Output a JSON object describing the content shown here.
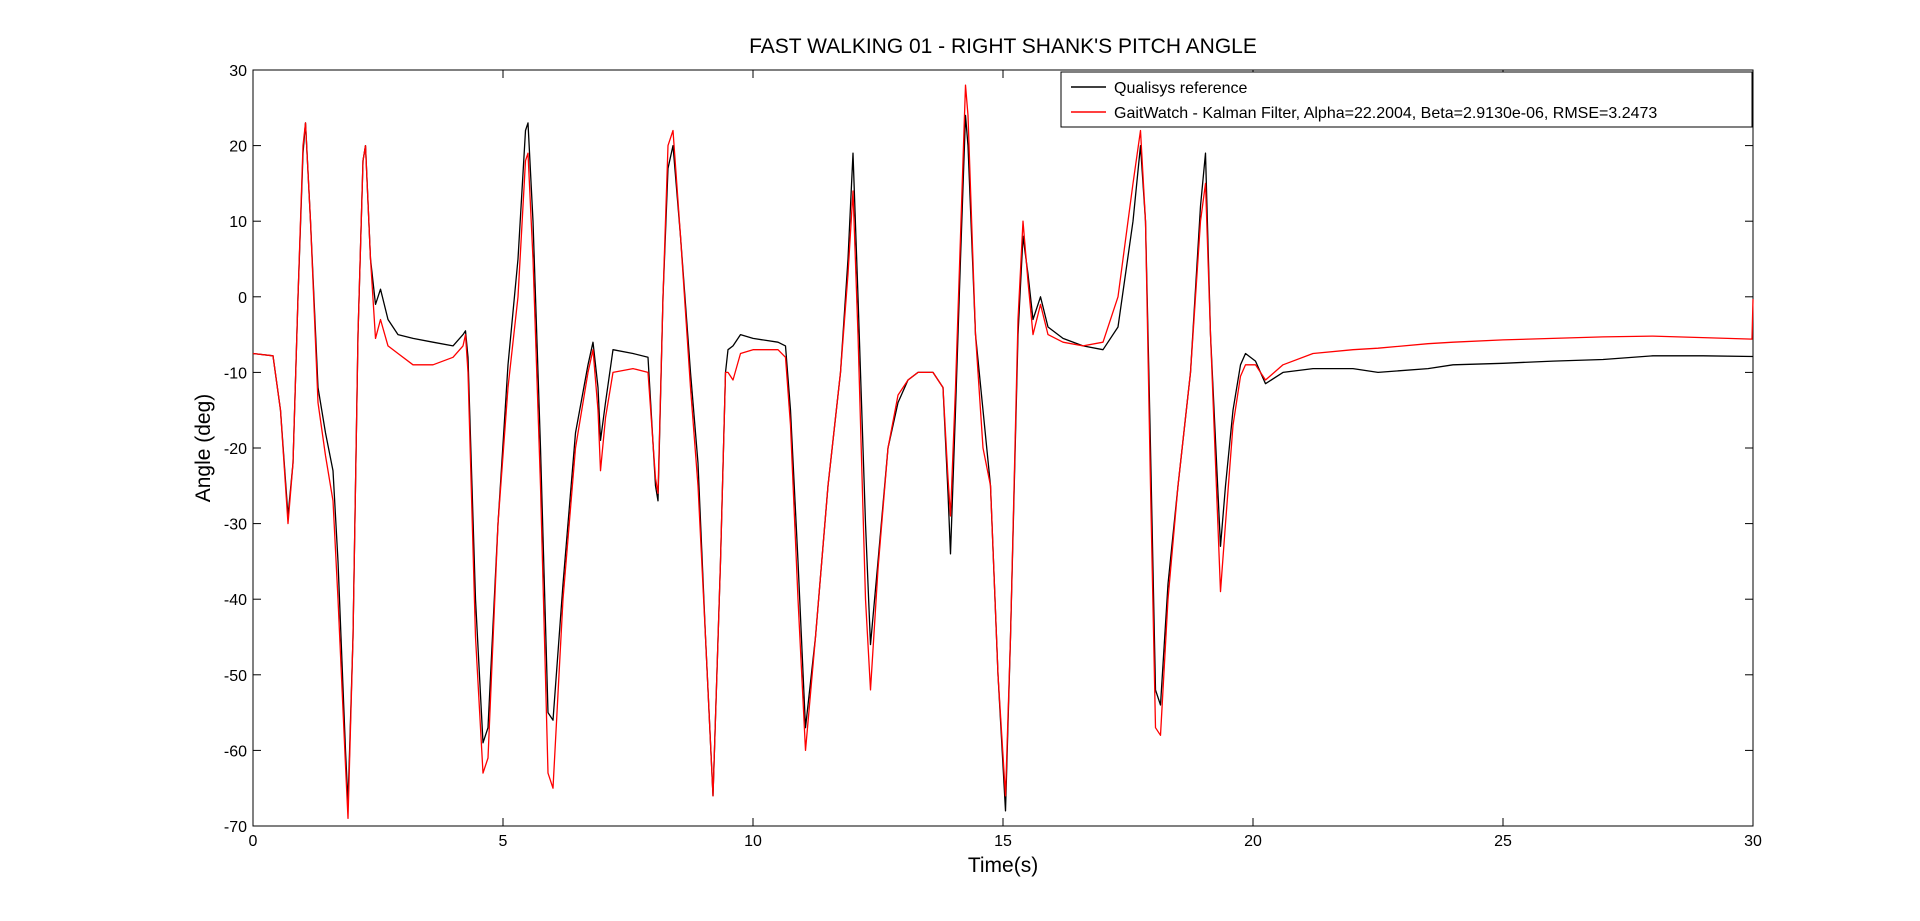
{
  "chart_data": {
    "type": "line",
    "title": "FAST WALKING 01 - RIGHT SHANK'S PITCH ANGLE",
    "xlabel": "Time(s)",
    "ylabel": "Angle (deg)",
    "xlim": [
      0,
      30
    ],
    "ylim": [
      -70,
      30
    ],
    "xticks": [
      0,
      5,
      10,
      15,
      20,
      25,
      30
    ],
    "yticks": [
      -70,
      -60,
      -50,
      -40,
      -30,
      -20,
      -10,
      0,
      10,
      20,
      30
    ],
    "grid": false,
    "legend_position": "top-right",
    "colors": {
      "reference": "#000000",
      "filter": "#ff0000"
    },
    "series": [
      {
        "name": "Qualisys reference",
        "color": "#000000",
        "points": [
          [
            0,
            -7.5
          ],
          [
            0.4,
            -7.8
          ],
          [
            0.55,
            -15
          ],
          [
            0.7,
            -29
          ],
          [
            0.8,
            -22
          ],
          [
            0.9,
            0
          ],
          [
            1.0,
            19
          ],
          [
            1.05,
            23
          ],
          [
            1.15,
            10
          ],
          [
            1.3,
            -12
          ],
          [
            1.45,
            -18
          ],
          [
            1.6,
            -23
          ],
          [
            1.7,
            -35
          ],
          [
            1.85,
            -60
          ],
          [
            1.9,
            -67
          ],
          [
            2.0,
            -45
          ],
          [
            2.1,
            -5
          ],
          [
            2.2,
            18
          ],
          [
            2.25,
            20
          ],
          [
            2.35,
            5
          ],
          [
            2.45,
            -1
          ],
          [
            2.55,
            1
          ],
          [
            2.7,
            -3
          ],
          [
            2.9,
            -5
          ],
          [
            3.2,
            -5.5
          ],
          [
            3.6,
            -6
          ],
          [
            4.0,
            -6.5
          ],
          [
            4.2,
            -5
          ],
          [
            4.25,
            -4.5
          ],
          [
            4.3,
            -8
          ],
          [
            4.45,
            -40
          ],
          [
            4.6,
            -59
          ],
          [
            4.7,
            -57
          ],
          [
            4.9,
            -30
          ],
          [
            5.1,
            -9
          ],
          [
            5.3,
            5
          ],
          [
            5.45,
            22
          ],
          [
            5.5,
            23
          ],
          [
            5.6,
            10
          ],
          [
            5.75,
            -20
          ],
          [
            5.9,
            -55
          ],
          [
            6.0,
            -56
          ],
          [
            6.2,
            -38
          ],
          [
            6.45,
            -18
          ],
          [
            6.7,
            -9
          ],
          [
            6.8,
            -6
          ],
          [
            6.9,
            -12
          ],
          [
            6.95,
            -19
          ],
          [
            7.05,
            -14
          ],
          [
            7.2,
            -7
          ],
          [
            7.6,
            -7.5
          ],
          [
            7.9,
            -8
          ],
          [
            8.05,
            -25
          ],
          [
            8.1,
            -27
          ],
          [
            8.2,
            0
          ],
          [
            8.3,
            17
          ],
          [
            8.4,
            20
          ],
          [
            8.55,
            8
          ],
          [
            8.75,
            -10
          ],
          [
            8.9,
            -22
          ],
          [
            9.05,
            -45
          ],
          [
            9.2,
            -66
          ],
          [
            9.35,
            -35
          ],
          [
            9.45,
            -10
          ],
          [
            9.5,
            -7
          ],
          [
            9.6,
            -6.5
          ],
          [
            9.75,
            -5
          ],
          [
            10.0,
            -5.5
          ],
          [
            10.5,
            -6
          ],
          [
            10.65,
            -6.5
          ],
          [
            10.75,
            -15
          ],
          [
            10.9,
            -35
          ],
          [
            11.05,
            -57
          ],
          [
            11.25,
            -45
          ],
          [
            11.5,
            -25
          ],
          [
            11.75,
            -10
          ],
          [
            11.9,
            5
          ],
          [
            12.0,
            19
          ],
          [
            12.1,
            0
          ],
          [
            12.25,
            -30
          ],
          [
            12.35,
            -46
          ],
          [
            12.5,
            -35
          ],
          [
            12.7,
            -20
          ],
          [
            12.9,
            -14
          ],
          [
            13.1,
            -11
          ],
          [
            13.3,
            -10
          ],
          [
            13.6,
            -10
          ],
          [
            13.8,
            -12
          ],
          [
            13.9,
            -26
          ],
          [
            13.95,
            -34
          ],
          [
            14.05,
            -15
          ],
          [
            14.15,
            5
          ],
          [
            14.25,
            24
          ],
          [
            14.3,
            20
          ],
          [
            14.45,
            -5
          ],
          [
            14.6,
            -15
          ],
          [
            14.75,
            -25
          ],
          [
            14.9,
            -50
          ],
          [
            15.05,
            -68
          ],
          [
            15.15,
            -45
          ],
          [
            15.3,
            -5
          ],
          [
            15.4,
            8
          ],
          [
            15.5,
            3
          ],
          [
            15.6,
            -3
          ],
          [
            15.75,
            0
          ],
          [
            15.9,
            -4
          ],
          [
            16.2,
            -5.5
          ],
          [
            16.6,
            -6.5
          ],
          [
            17.0,
            -7
          ],
          [
            17.3,
            -4
          ],
          [
            17.6,
            10
          ],
          [
            17.75,
            20
          ],
          [
            17.85,
            10
          ],
          [
            17.95,
            -20
          ],
          [
            18.05,
            -52
          ],
          [
            18.15,
            -54
          ],
          [
            18.3,
            -38
          ],
          [
            18.5,
            -25
          ],
          [
            18.75,
            -10
          ],
          [
            18.95,
            12
          ],
          [
            19.05,
            19
          ],
          [
            19.15,
            -5
          ],
          [
            19.35,
            -33
          ],
          [
            19.45,
            -25
          ],
          [
            19.6,
            -15
          ],
          [
            19.75,
            -9
          ],
          [
            19.85,
            -7.5
          ],
          [
            20.05,
            -8.5
          ],
          [
            20.25,
            -11.5
          ],
          [
            20.6,
            -10
          ],
          [
            21.2,
            -9.5
          ],
          [
            22.0,
            -9.5
          ],
          [
            22.5,
            -10
          ],
          [
            23.5,
            -9.5
          ],
          [
            24.0,
            -9
          ],
          [
            25.0,
            -8.8
          ],
          [
            26.0,
            -8.5
          ],
          [
            27.0,
            -8.3
          ],
          [
            28.0,
            -7.8
          ],
          [
            29.0,
            -7.8
          ],
          [
            30.0,
            -7.9
          ]
        ]
      },
      {
        "name": "GaitWatch - Kalman Filter, Alpha=22.2004, Beta=2.9130e-06, RMSE=3.2473",
        "color": "#ff0000",
        "points": [
          [
            0,
            -7.5
          ],
          [
            0.4,
            -7.8
          ],
          [
            0.55,
            -15
          ],
          [
            0.7,
            -30
          ],
          [
            0.8,
            -22
          ],
          [
            0.9,
            0
          ],
          [
            1.0,
            20
          ],
          [
            1.05,
            23
          ],
          [
            1.15,
            10
          ],
          [
            1.3,
            -14
          ],
          [
            1.45,
            -21
          ],
          [
            1.6,
            -27
          ],
          [
            1.7,
            -40
          ],
          [
            1.85,
            -62
          ],
          [
            1.9,
            -69
          ],
          [
            2.0,
            -45
          ],
          [
            2.1,
            -5
          ],
          [
            2.2,
            18
          ],
          [
            2.25,
            20
          ],
          [
            2.35,
            5
          ],
          [
            2.45,
            -5.5
          ],
          [
            2.55,
            -3
          ],
          [
            2.7,
            -6.5
          ],
          [
            2.9,
            -7.5
          ],
          [
            3.2,
            -9
          ],
          [
            3.6,
            -9
          ],
          [
            4.0,
            -8
          ],
          [
            4.2,
            -6.5
          ],
          [
            4.25,
            -5
          ],
          [
            4.3,
            -10
          ],
          [
            4.45,
            -45
          ],
          [
            4.6,
            -63
          ],
          [
            4.7,
            -61
          ],
          [
            4.9,
            -30
          ],
          [
            5.1,
            -12
          ],
          [
            5.3,
            0
          ],
          [
            5.45,
            18
          ],
          [
            5.5,
            19
          ],
          [
            5.6,
            5
          ],
          [
            5.75,
            -25
          ],
          [
            5.9,
            -63
          ],
          [
            6.0,
            -65
          ],
          [
            6.2,
            -40
          ],
          [
            6.45,
            -20
          ],
          [
            6.7,
            -10
          ],
          [
            6.8,
            -7
          ],
          [
            6.9,
            -15
          ],
          [
            6.95,
            -23
          ],
          [
            7.05,
            -16
          ],
          [
            7.2,
            -10
          ],
          [
            7.6,
            -9.5
          ],
          [
            7.9,
            -10
          ],
          [
            8.05,
            -24
          ],
          [
            8.1,
            -26
          ],
          [
            8.2,
            0
          ],
          [
            8.3,
            20
          ],
          [
            8.4,
            22
          ],
          [
            8.55,
            8
          ],
          [
            8.75,
            -12
          ],
          [
            8.9,
            -25
          ],
          [
            9.05,
            -45
          ],
          [
            9.2,
            -66
          ],
          [
            9.35,
            -35
          ],
          [
            9.45,
            -10
          ],
          [
            9.5,
            -10
          ],
          [
            9.6,
            -11
          ],
          [
            9.75,
            -7.5
          ],
          [
            10.0,
            -7
          ],
          [
            10.5,
            -7
          ],
          [
            10.65,
            -8
          ],
          [
            10.75,
            -17
          ],
          [
            10.9,
            -40
          ],
          [
            11.05,
            -60
          ],
          [
            11.25,
            -45
          ],
          [
            11.5,
            -25
          ],
          [
            11.75,
            -10
          ],
          [
            11.9,
            3
          ],
          [
            12.0,
            14
          ],
          [
            12.1,
            -5
          ],
          [
            12.25,
            -40
          ],
          [
            12.35,
            -52
          ],
          [
            12.5,
            -36
          ],
          [
            12.7,
            -20
          ],
          [
            12.9,
            -13
          ],
          [
            13.1,
            -11
          ],
          [
            13.3,
            -10
          ],
          [
            13.6,
            -10
          ],
          [
            13.8,
            -12
          ],
          [
            13.9,
            -24
          ],
          [
            13.95,
            -29
          ],
          [
            14.05,
            -12
          ],
          [
            14.15,
            8
          ],
          [
            14.25,
            28
          ],
          [
            14.3,
            24
          ],
          [
            14.45,
            -5
          ],
          [
            14.6,
            -20
          ],
          [
            14.75,
            -25
          ],
          [
            14.9,
            -50
          ],
          [
            15.05,
            -66
          ],
          [
            15.15,
            -45
          ],
          [
            15.3,
            -3
          ],
          [
            15.4,
            10
          ],
          [
            15.5,
            2
          ],
          [
            15.6,
            -5
          ],
          [
            15.75,
            -1
          ],
          [
            15.9,
            -5
          ],
          [
            16.2,
            -6
          ],
          [
            16.6,
            -6.5
          ],
          [
            17.0,
            -6
          ],
          [
            17.3,
            0
          ],
          [
            17.6,
            15
          ],
          [
            17.75,
            22
          ],
          [
            17.85,
            10
          ],
          [
            17.95,
            -25
          ],
          [
            18.05,
            -57
          ],
          [
            18.15,
            -58
          ],
          [
            18.3,
            -40
          ],
          [
            18.5,
            -25
          ],
          [
            18.75,
            -10
          ],
          [
            18.95,
            10
          ],
          [
            19.05,
            15
          ],
          [
            19.15,
            -5
          ],
          [
            19.35,
            -39
          ],
          [
            19.45,
            -30
          ],
          [
            19.6,
            -17
          ],
          [
            19.75,
            -10.5
          ],
          [
            19.85,
            -9
          ],
          [
            20.05,
            -9
          ],
          [
            20.25,
            -11
          ],
          [
            20.6,
            -9
          ],
          [
            21.2,
            -7.5
          ],
          [
            22.0,
            -7
          ],
          [
            22.5,
            -6.8
          ],
          [
            23.5,
            -6.2
          ],
          [
            24.0,
            -6
          ],
          [
            25.0,
            -5.7
          ],
          [
            26.0,
            -5.5
          ],
          [
            27.0,
            -5.3
          ],
          [
            28.0,
            -5.2
          ],
          [
            29.0,
            -5.4
          ],
          [
            29.98,
            -5.6
          ],
          [
            30.0,
            -0.3
          ]
        ]
      }
    ]
  }
}
